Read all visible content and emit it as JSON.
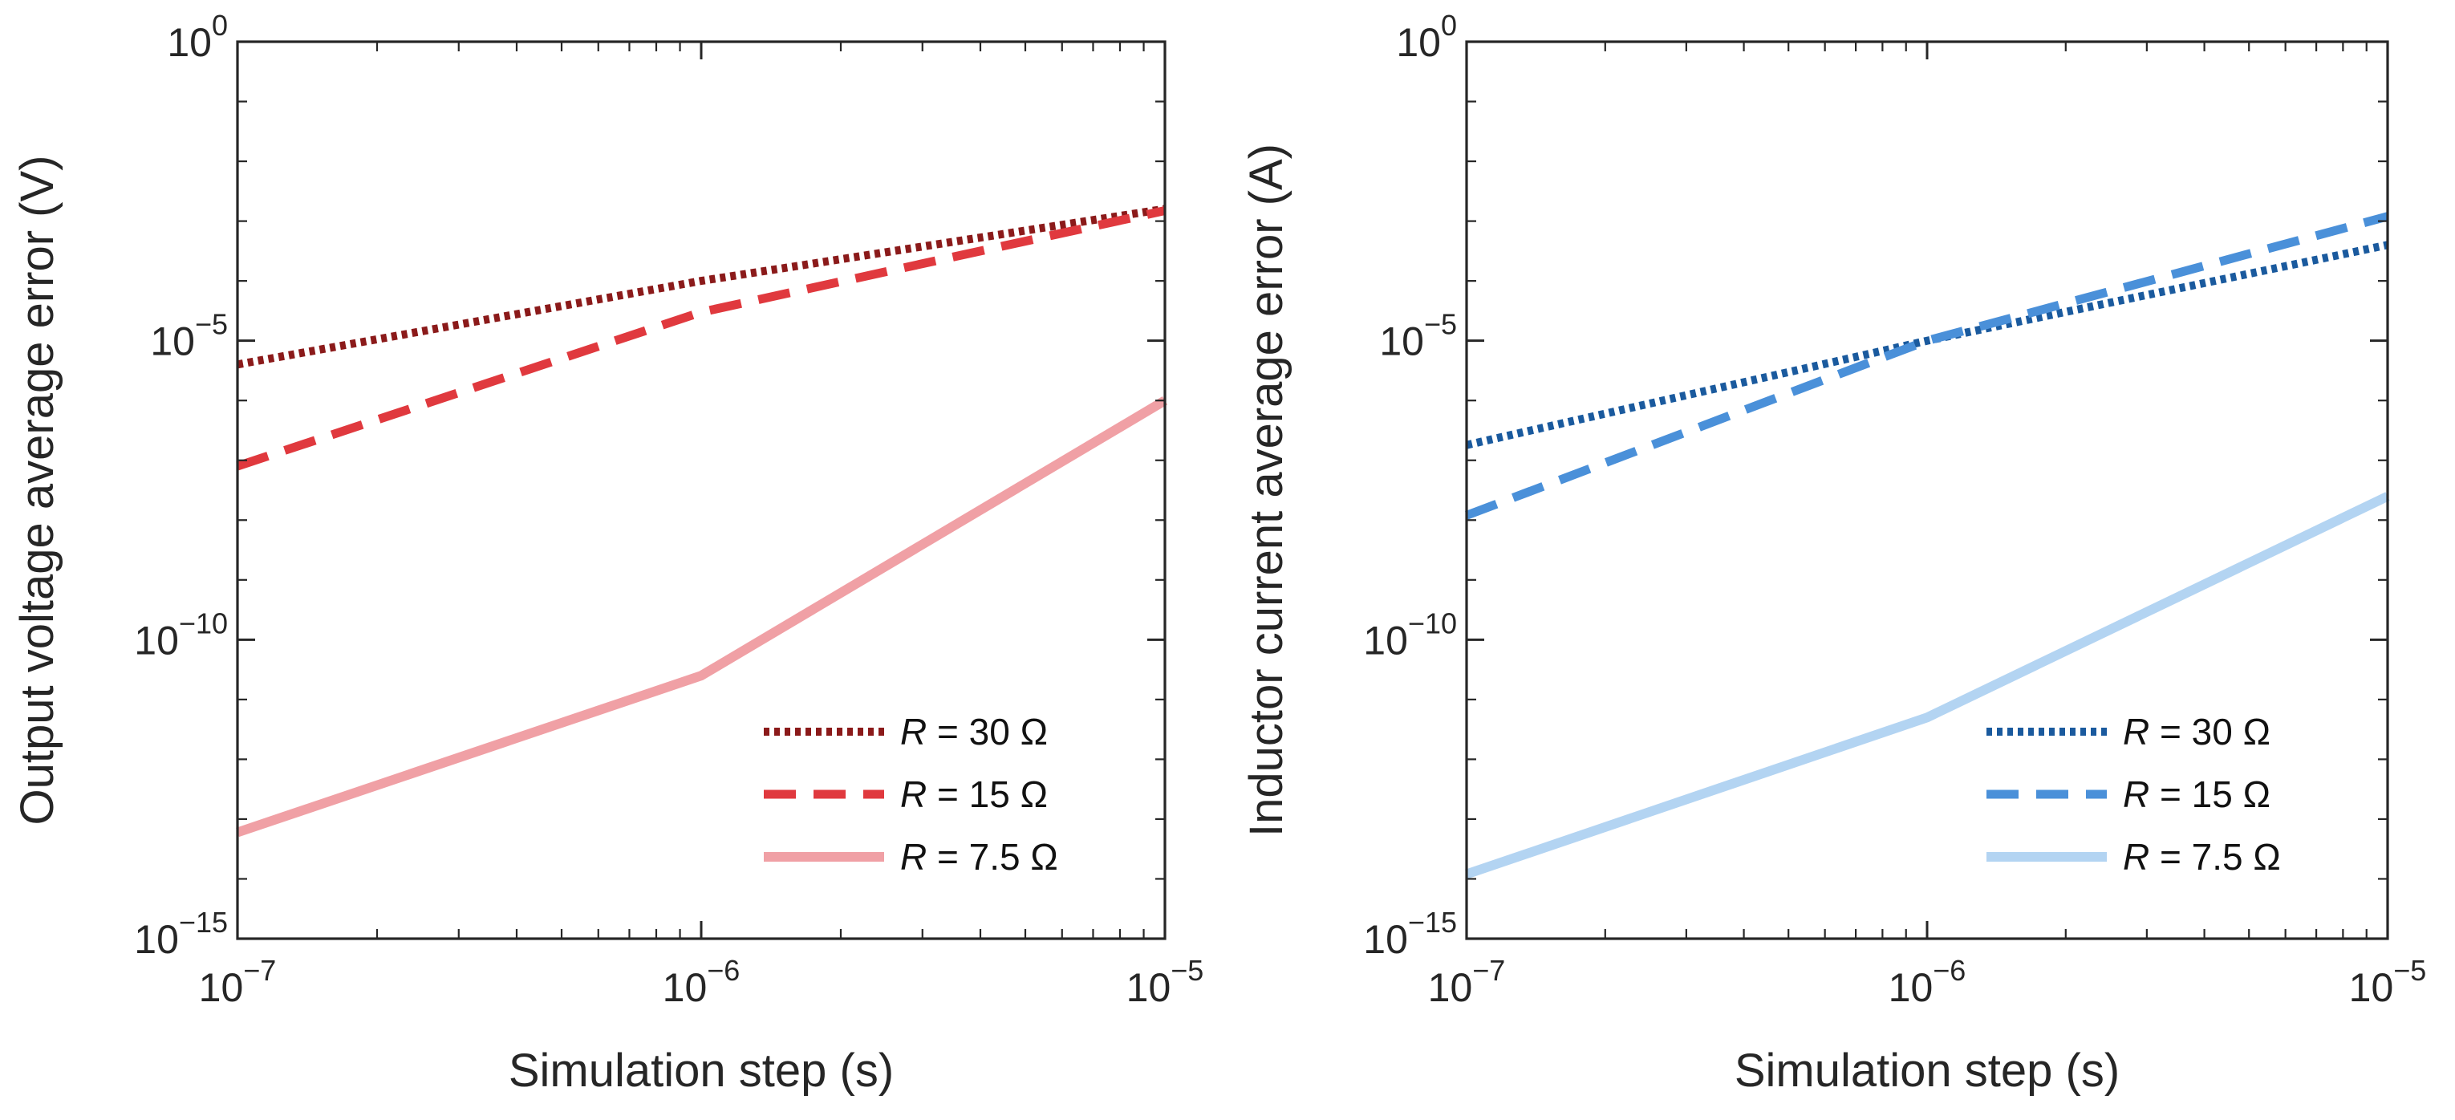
{
  "chart_data": [
    {
      "type": "line",
      "xlabel": "Simulation step (s)",
      "ylabel": "Output voltage average error (V)",
      "xscale": "log",
      "yscale": "log",
      "xlim": [
        1e-07,
        1e-05
      ],
      "ylim": [
        1e-15,
        1
      ],
      "xticks": [
        {
          "base": "10",
          "exp": "−7"
        },
        {
          "base": "10",
          "exp": "−6"
        },
        {
          "base": "10",
          "exp": "−5"
        }
      ],
      "yticks": [
        {
          "base": "10",
          "exp": "0"
        },
        {
          "base": "10",
          "exp": "−5"
        },
        {
          "base": "10",
          "exp": "−10"
        },
        {
          "base": "10",
          "exp": "−15"
        }
      ],
      "legend_position": "lower-right",
      "grid": false,
      "series": [
        {
          "name": "R = 30 Ω",
          "label_var": "R",
          "label_rest": " = 30 Ω",
          "style": "dotted",
          "color": "#8b1a1a",
          "x": [
            1e-07,
            1e-06,
            1e-05
          ],
          "y": [
            4e-06,
            0.0001,
            0.0016
          ]
        },
        {
          "name": "R = 15 Ω",
          "label_var": "R",
          "label_rest": " = 15 Ω",
          "style": "dashed",
          "color": "#e0393e",
          "x": [
            1e-07,
            1e-06,
            1e-05
          ],
          "y": [
            8e-08,
            3e-05,
            0.0015
          ]
        },
        {
          "name": "R = 7.5 Ω",
          "label_var": "R",
          "label_rest": " = 7.5 Ω",
          "style": "solid",
          "color": "#f0a0a5",
          "x": [
            1e-07,
            1e-06,
            1e-05
          ],
          "y": [
            6e-14,
            2.5e-11,
            1e-06
          ]
        }
      ]
    },
    {
      "type": "line",
      "xlabel": "Simulation step (s)",
      "ylabel": "Inductor current average error (A)",
      "xscale": "log",
      "yscale": "log",
      "xlim": [
        1e-07,
        1e-05
      ],
      "ylim": [
        1e-15,
        1
      ],
      "xticks": [
        {
          "base": "10",
          "exp": "−7"
        },
        {
          "base": "10",
          "exp": "−6"
        },
        {
          "base": "10",
          "exp": "−5"
        }
      ],
      "yticks": [
        {
          "base": "10",
          "exp": "0"
        },
        {
          "base": "10",
          "exp": "−5"
        },
        {
          "base": "10",
          "exp": "−10"
        },
        {
          "base": "10",
          "exp": "−15"
        }
      ],
      "legend_position": "lower-right",
      "grid": false,
      "series": [
        {
          "name": "R = 30 Ω",
          "label_var": "R",
          "label_rest": " = 30 Ω",
          "style": "dotted",
          "color": "#1a5a9e",
          "x": [
            1e-07,
            1e-06,
            1e-05
          ],
          "y": [
            1.8e-07,
            1e-05,
            0.0004
          ]
        },
        {
          "name": "R = 15 Ω",
          "label_var": "R",
          "label_rest": " = 15 Ω",
          "style": "dashed",
          "color": "#4a90d9",
          "x": [
            1e-07,
            1e-06,
            1e-05
          ],
          "y": [
            1.2e-08,
            1e-05,
            0.0012
          ]
        },
        {
          "name": "R = 7.5 Ω",
          "label_var": "R",
          "label_rest": " = 7.5 Ω",
          "style": "solid",
          "color": "#b3d4f2",
          "x": [
            1e-07,
            1e-06,
            1e-05
          ],
          "y": [
            1.2e-14,
            5e-12,
            2.5e-08
          ]
        }
      ]
    }
  ]
}
